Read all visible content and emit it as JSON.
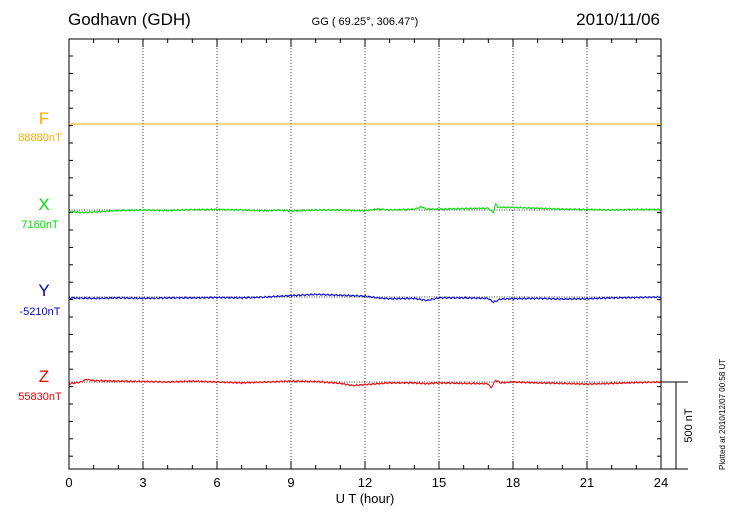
{
  "header": {
    "station": "Godhavn (GDH)",
    "coords": "GG ( 69.25°, 306.47°)",
    "date": "2010/11/06"
  },
  "footer": {
    "plotted": "Plotted at 2010/12/07 00:58 UT"
  },
  "colors": {
    "F": "#ffaa00",
    "X": "#00dd00",
    "Y": "#0000cc",
    "Z": "#ee0000"
  },
  "chart_data": {
    "type": "line",
    "title": "Godhavn (GDH)",
    "xlabel": "U T (hour)",
    "ylabel": "",
    "xlim": [
      0,
      24
    ],
    "x_ticks": [
      "0",
      "3",
      "6",
      "9",
      "12",
      "15",
      "18",
      "21",
      "24"
    ],
    "grid": "vertical dotted lines every 3 hours",
    "scale_bar": "500 nT",
    "series": [
      {
        "name": "F",
        "baseline": "88880nT",
        "offset_nT": [
          [
            0,
            0
          ],
          [
            24,
            0
          ]
        ]
      },
      {
        "name": "X",
        "baseline": "7160nT",
        "offset_nT": [
          [
            0,
            -8
          ],
          [
            0.5,
            -15
          ],
          [
            1,
            -12
          ],
          [
            2,
            -3
          ],
          [
            3,
            0
          ],
          [
            4,
            -3
          ],
          [
            5,
            2
          ],
          [
            6,
            3
          ],
          [
            7,
            0
          ],
          [
            8,
            -5
          ],
          [
            8.5,
            0
          ],
          [
            9,
            -6
          ],
          [
            10,
            0
          ],
          [
            11,
            0
          ],
          [
            12,
            -5
          ],
          [
            12.5,
            6
          ],
          [
            13,
            0
          ],
          [
            14,
            5
          ],
          [
            14.3,
            18
          ],
          [
            14.5,
            5
          ],
          [
            15,
            5
          ],
          [
            16,
            8
          ],
          [
            17,
            10
          ],
          [
            17.2,
            -15
          ],
          [
            17.3,
            35
          ],
          [
            17.4,
            15
          ],
          [
            18,
            15
          ],
          [
            19,
            10
          ],
          [
            20,
            5
          ],
          [
            21,
            3
          ],
          [
            22,
            0
          ],
          [
            23,
            3
          ],
          [
            24,
            3
          ]
        ]
      },
      {
        "name": "Y",
        "baseline": "-5210nT",
        "offset_nT": [
          [
            0,
            -5
          ],
          [
            1,
            -8
          ],
          [
            2,
            -5
          ],
          [
            3,
            -8
          ],
          [
            4,
            -5
          ],
          [
            5,
            -5
          ],
          [
            6,
            -3
          ],
          [
            7,
            -5
          ],
          [
            8,
            0
          ],
          [
            9,
            8
          ],
          [
            10,
            15
          ],
          [
            11,
            10
          ],
          [
            12,
            5
          ],
          [
            12.5,
            -5
          ],
          [
            13,
            -10
          ],
          [
            14,
            -8
          ],
          [
            14.5,
            -20
          ],
          [
            15,
            -5
          ],
          [
            16,
            -5
          ],
          [
            17,
            -8
          ],
          [
            17.2,
            -30
          ],
          [
            17.5,
            -12
          ],
          [
            18,
            -10
          ],
          [
            19,
            -8
          ],
          [
            20,
            -12
          ],
          [
            21,
            -10
          ],
          [
            22,
            -5
          ],
          [
            23,
            -3
          ],
          [
            24,
            0
          ]
        ]
      },
      {
        "name": "Z",
        "baseline": "55830nT",
        "offset_nT": [
          [
            0,
            -10
          ],
          [
            0.5,
            0
          ],
          [
            0.7,
            15
          ],
          [
            1,
            8
          ],
          [
            2,
            5
          ],
          [
            3,
            3
          ],
          [
            4,
            0
          ],
          [
            5,
            5
          ],
          [
            6,
            0
          ],
          [
            7,
            -5
          ],
          [
            8,
            0
          ],
          [
            9,
            5
          ],
          [
            10,
            3
          ],
          [
            11,
            -8
          ],
          [
            11.5,
            -20
          ],
          [
            12,
            -15
          ],
          [
            12.5,
            -10
          ],
          [
            13,
            -5
          ],
          [
            14,
            -5
          ],
          [
            14.5,
            -10
          ],
          [
            15,
            -5
          ],
          [
            16,
            -8
          ],
          [
            17,
            -10
          ],
          [
            17.1,
            -35
          ],
          [
            17.3,
            10
          ],
          [
            17.5,
            -5
          ],
          [
            18,
            0
          ],
          [
            19,
            -5
          ],
          [
            20,
            -8
          ],
          [
            21,
            -12
          ],
          [
            22,
            -8
          ],
          [
            23,
            -3
          ],
          [
            24,
            0
          ]
        ]
      }
    ]
  }
}
